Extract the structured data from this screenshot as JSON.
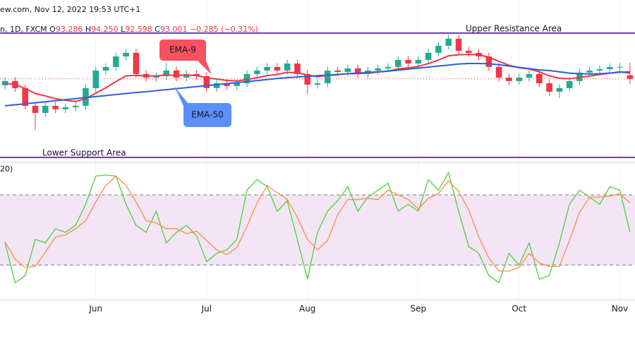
{
  "header": {
    "source": "ew.com, Nov 12, 2022 19:53 UTC+1",
    "symbol": "n, 1D, FXCM",
    "ohlc": [
      {
        "label": "O",
        "value": "93.286"
      },
      {
        "label": "H",
        "value": "94.250"
      },
      {
        "label": "L",
        "value": "92.598"
      },
      {
        "label": "C",
        "value": "93.001"
      }
    ],
    "change": "−0.285 (−0.31%)"
  },
  "chart_data": [
    {
      "type": "candlestick",
      "ylim": [
        86.5,
        97.5
      ],
      "up_color": "#22ab94",
      "down_color": "#f23645",
      "categories": [
        null,
        null,
        null,
        null,
        null,
        null,
        null,
        null,
        null,
        "Jun",
        null,
        null,
        null,
        null,
        null,
        null,
        null,
        null,
        null,
        null,
        "Jul",
        null,
        null,
        null,
        null,
        null,
        null,
        null,
        null,
        null,
        "Aug",
        null,
        null,
        null,
        null,
        null,
        null,
        null,
        null,
        null,
        null,
        "Sep",
        null,
        null,
        null,
        null,
        null,
        null,
        null,
        null,
        null,
        "Oct",
        null,
        null,
        null,
        null,
        null,
        null,
        null,
        null,
        null,
        "Nov",
        null
      ],
      "open": [
        92.5,
        92.83,
        92.28,
        90.9,
        90.35,
        90.9,
        90.63,
        90.79,
        90.9,
        92.28,
        93.65,
        93.93,
        94.75,
        95.03,
        93.38,
        93.1,
        93.21,
        93.65,
        93.1,
        93.38,
        93.21,
        92.28,
        92.66,
        92.44,
        92.66,
        93.38,
        93.65,
        93.93,
        93.65,
        94.2,
        93.38,
        92.55,
        92.66,
        93.65,
        93.54,
        93.82,
        93.38,
        93.65,
        93.82,
        93.93,
        94.48,
        94.2,
        94.48,
        95.03,
        95.58,
        96.13,
        95.19,
        95.03,
        94.75,
        93.93,
        93.1,
        92.83,
        93.1,
        93.38,
        92.66,
        92.0,
        92.28,
        92.83,
        93.49,
        93.65,
        93.76,
        93.93,
        93.286
      ],
      "high": [
        93.13,
        93.13,
        92.58,
        91.2,
        91.2,
        91.2,
        91.09,
        91.2,
        92.58,
        93.95,
        94.23,
        95.05,
        95.33,
        95.33,
        93.68,
        93.51,
        94.25,
        93.95,
        93.68,
        93.68,
        93.51,
        92.96,
        92.96,
        92.96,
        93.68,
        93.95,
        94.23,
        94.23,
        94.5,
        94.5,
        93.68,
        92.96,
        93.95,
        93.95,
        94.12,
        94.12,
        93.95,
        94.12,
        94.23,
        94.78,
        94.78,
        94.78,
        95.33,
        95.88,
        96.43,
        96.43,
        95.49,
        95.33,
        95.05,
        94.23,
        93.4,
        93.4,
        93.68,
        93.68,
        92.96,
        92.58,
        93.13,
        93.79,
        93.95,
        94.06,
        94.23,
        94.23,
        94.25
      ],
      "low": [
        92.2,
        91.98,
        90.6,
        89.0,
        90.05,
        90.33,
        90.33,
        90.49,
        90.6,
        91.98,
        93.35,
        93.63,
        94.45,
        93.08,
        92.8,
        92.8,
        92.91,
        92.8,
        92.8,
        92.91,
        91.98,
        91.98,
        92.14,
        92.14,
        92.36,
        93.08,
        93.35,
        93.35,
        93.35,
        93.08,
        91.8,
        92.25,
        92.36,
        93.24,
        93.24,
        93.08,
        93.08,
        93.35,
        93.52,
        93.63,
        93.9,
        93.9,
        94.18,
        94.73,
        95.28,
        94.89,
        94.73,
        94.45,
        93.63,
        92.8,
        92.53,
        92.53,
        92.8,
        92.36,
        91.7,
        91.5,
        91.98,
        92.53,
        93.19,
        93.35,
        93.46,
        93.63,
        92.598
      ],
      "close": [
        92.83,
        92.28,
        90.9,
        90.35,
        90.9,
        90.63,
        90.79,
        90.9,
        92.28,
        93.65,
        93.93,
        94.75,
        95.03,
        93.38,
        93.1,
        93.21,
        93.65,
        93.1,
        93.38,
        93.21,
        92.28,
        92.66,
        92.44,
        92.66,
        93.38,
        93.65,
        93.93,
        93.65,
        94.2,
        93.38,
        92.55,
        92.66,
        93.65,
        93.54,
        93.82,
        93.38,
        93.65,
        93.82,
        93.93,
        94.48,
        94.2,
        94.48,
        95.03,
        95.58,
        96.13,
        95.19,
        95.03,
        94.75,
        93.93,
        93.1,
        92.83,
        93.1,
        93.38,
        92.66,
        92.0,
        92.28,
        92.83,
        93.49,
        93.65,
        93.76,
        93.93,
        93.93,
        93.001
      ],
      "series": [
        {
          "name": "EMA-9",
          "color": "#f23645",
          "values": [
            92.65,
            92.58,
            92.24,
            91.86,
            91.67,
            91.46,
            91.33,
            91.24,
            91.45,
            91.89,
            92.3,
            92.79,
            93.24,
            93.27,
            93.24,
            93.23,
            93.31,
            93.27,
            93.29,
            93.27,
            93.07,
            92.99,
            92.88,
            92.84,
            92.95,
            93.09,
            93.26,
            93.34,
            93.51,
            93.48,
            93.3,
            93.17,
            93.27,
            93.32,
            93.42,
            93.41,
            93.46,
            93.53,
            93.61,
            93.78,
            93.86,
            93.98,
            94.19,
            94.47,
            94.8,
            94.88,
            94.91,
            94.88,
            94.69,
            94.37,
            94.06,
            93.87,
            93.77,
            93.55,
            93.24,
            93.05,
            93.01,
            93.11,
            93.22,
            93.33,
            93.45,
            93.55,
            93.44
          ]
        },
        {
          "name": "EMA-50",
          "color": "#2f5fd8",
          "values": [
            90.9,
            90.98,
            91.06,
            91.14,
            91.22,
            91.3,
            91.38,
            91.46,
            91.54,
            91.62,
            91.7,
            91.78,
            91.86,
            91.94,
            92.0,
            92.08,
            92.16,
            92.24,
            92.32,
            92.4,
            92.48,
            92.55,
            92.63,
            92.71,
            92.79,
            92.87,
            92.95,
            93.03,
            93.1,
            93.15,
            93.2,
            93.25,
            93.3,
            93.35,
            93.4,
            93.45,
            93.5,
            93.55,
            93.6,
            93.68,
            93.76,
            93.84,
            93.92,
            94.0,
            94.08,
            94.16,
            94.2,
            94.2,
            94.18,
            94.1,
            94.0,
            93.9,
            93.8,
            93.7,
            93.65,
            93.55,
            93.45,
            93.4,
            93.38,
            93.4,
            93.45,
            93.52,
            93.55
          ]
        }
      ],
      "levels": [
        {
          "label": "Upper Resistance Area",
          "value": 96.57,
          "color": "#673ab7"
        },
        {
          "label": "Lower Support Area",
          "value": 86.88,
          "color": "#673ab7"
        }
      ]
    },
    {
      "type": "line",
      "title": "20)",
      "ylim": [
        0,
        100
      ],
      "bands": [
        20,
        80
      ],
      "band_color": "#f3e5f5",
      "series": [
        {
          "color": "#4cd137",
          "values": [
            39,
            5,
            11,
            42,
            39,
            51,
            48,
            54,
            72,
            96,
            97,
            96,
            72,
            54,
            48,
            66,
            39,
            48,
            54,
            45,
            23,
            30,
            33,
            42,
            84,
            93,
            87,
            66,
            75,
            42,
            8,
            48,
            66,
            75,
            87,
            66,
            78,
            84,
            90,
            66,
            72,
            66,
            93,
            84,
            99,
            66,
            36,
            30,
            11,
            5,
            30,
            20,
            39,
            8,
            11,
            39,
            72,
            84,
            78,
            72,
            87,
            84,
            48
          ]
        },
        {
          "color": "#ff8c42",
          "values": [
            40,
            25,
            18,
            19,
            31,
            44,
            46,
            51,
            58,
            74,
            88,
            96,
            88,
            74,
            58,
            56,
            51,
            51,
            47,
            49,
            41,
            33,
            29,
            35,
            53,
            73,
            88,
            82,
            76,
            61,
            42,
            33,
            41,
            63,
            76,
            76,
            77,
            76,
            84,
            80,
            76,
            68,
            77,
            81,
            92,
            83,
            67,
            44,
            26,
            15,
            15,
            18,
            30,
            22,
            19,
            19,
            41,
            65,
            78,
            78,
            79,
            81,
            73
          ]
        }
      ]
    }
  ]
}
